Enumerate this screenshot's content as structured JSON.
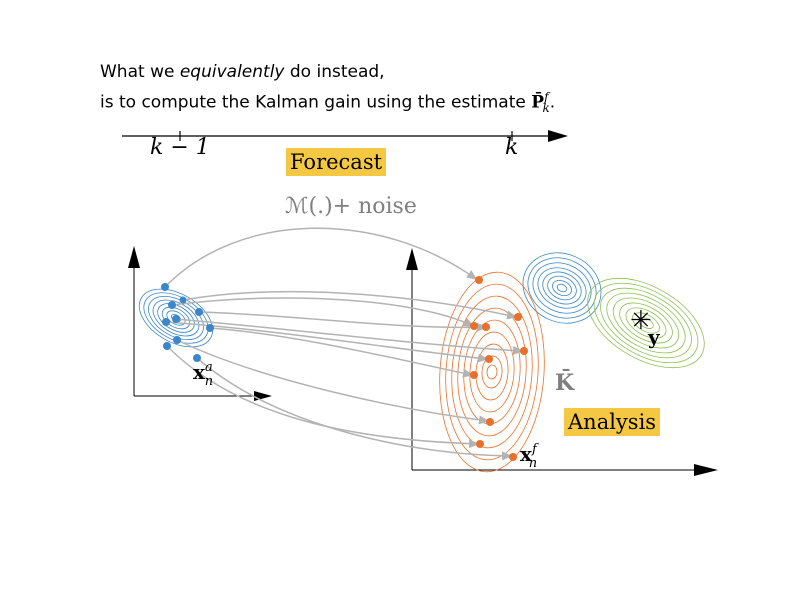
{
  "text": {
    "line1_prefix": "What we ",
    "line1_emph": "equivalently",
    "line1_suffix": " do instead,",
    "line2_prefix": "is to compute the Kalman gain using the estimate ",
    "line2_symbol": "P̄",
    "line2_sup": "f",
    "line2_sub": "k",
    "line2_end": "."
  },
  "timeline": {
    "left_tick": "k − 1",
    "right_tick": "k"
  },
  "labels": {
    "forecast": "Forecast",
    "model": "ℳ(.)+ noise",
    "analysis": "Analysis",
    "gain": "K̄",
    "analysis_ensemble": "x",
    "analysis_ensemble_sup": "a",
    "analysis_ensemble_sub": "n",
    "forecast_ensemble": "x",
    "forecast_ensemble_sup": "f",
    "forecast_ensemble_sub": "n",
    "observation_marker": "✳",
    "observation": "y"
  },
  "colors": {
    "highlight": "#f4c842",
    "analysis_points": "#3a86c8",
    "forecast_points": "#e8702a",
    "forecast_contours": "#e8702a",
    "background_contours": "#3a86c8",
    "observation_contours": "#8cc152",
    "trajectories": "#b3b3b3",
    "model_text": "#7f7f7f"
  }
}
